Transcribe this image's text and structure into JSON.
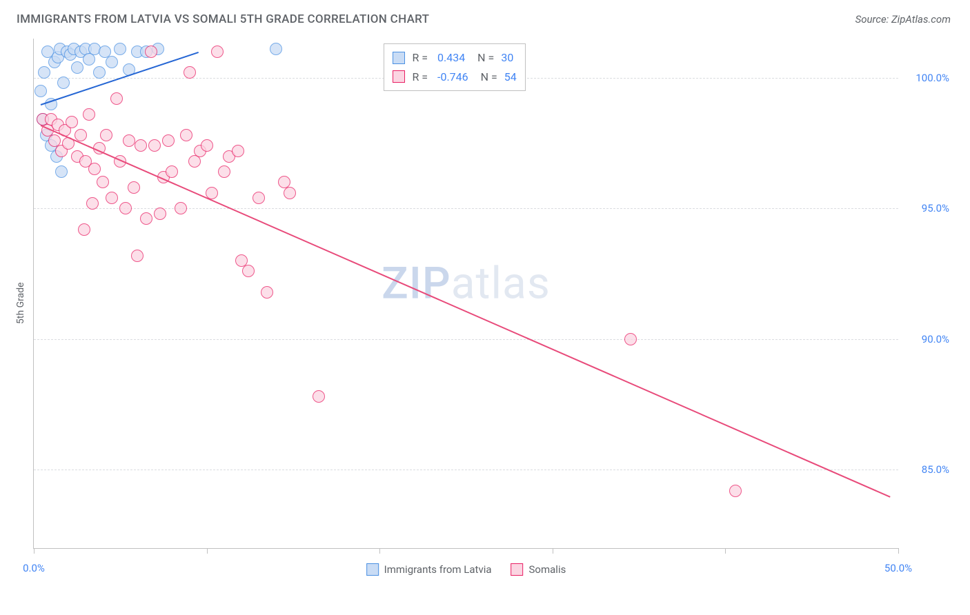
{
  "header": {
    "title": "IMMIGRANTS FROM LATVIA VS SOMALI 5TH GRADE CORRELATION CHART",
    "source": "Source: ZipAtlas.com"
  },
  "chart": {
    "type": "scatter",
    "ylabel": "5th Grade",
    "xlim": [
      0,
      50
    ],
    "ylim": [
      82,
      101.5
    ],
    "xticks": [
      0,
      10,
      20,
      30,
      40,
      50
    ],
    "xtick_labels_shown": {
      "0": "0.0%",
      "50": "50.0%"
    },
    "yticks": [
      85,
      90,
      95,
      100
    ],
    "ytick_labels": [
      "85.0%",
      "90.0%",
      "95.0%",
      "100.0%"
    ],
    "grid_color": "#dadce0",
    "axis_color": "#c0c0c0",
    "background_color": "#ffffff",
    "tick_color": "#4285f4",
    "label_color": "#5f6368",
    "point_radius": 9,
    "point_border_width": 1,
    "series": [
      {
        "name": "Immigrants from Latvia",
        "fill": "#c9dcf5",
        "stroke": "#4a90e2",
        "line_color": "#2566d4",
        "R": 0.434,
        "N": 30,
        "trend": {
          "x1": 0.4,
          "y1": 99.0,
          "x2": 9.5,
          "y2": 101.0
        },
        "points": [
          [
            0.4,
            99.5
          ],
          [
            0.6,
            100.2
          ],
          [
            0.8,
            101.0
          ],
          [
            1.0,
            99.0
          ],
          [
            1.2,
            100.6
          ],
          [
            1.4,
            100.8
          ],
          [
            1.5,
            101.1
          ],
          [
            1.7,
            99.8
          ],
          [
            1.9,
            101.0
          ],
          [
            2.1,
            100.9
          ],
          [
            2.3,
            101.1
          ],
          [
            2.5,
            100.4
          ],
          [
            2.7,
            101.0
          ],
          [
            3.0,
            101.1
          ],
          [
            3.2,
            100.7
          ],
          [
            3.5,
            101.1
          ],
          [
            3.8,
            100.2
          ],
          [
            4.1,
            101.0
          ],
          [
            4.5,
            100.6
          ],
          [
            5.0,
            101.1
          ],
          [
            5.5,
            100.3
          ],
          [
            6.0,
            101.0
          ],
          [
            6.5,
            101.0
          ],
          [
            7.2,
            101.1
          ],
          [
            0.5,
            98.4
          ],
          [
            0.7,
            97.8
          ],
          [
            1.0,
            97.4
          ],
          [
            1.3,
            97.0
          ],
          [
            1.6,
            96.4
          ],
          [
            14.0,
            101.1
          ]
        ]
      },
      {
        "name": "Somalis",
        "fill": "#fbd5e2",
        "stroke": "#e91e63",
        "line_color": "#e84a7a",
        "R": -0.746,
        "N": 54,
        "trend": {
          "x1": 0.4,
          "y1": 98.2,
          "x2": 49.5,
          "y2": 84.0
        },
        "points": [
          [
            0.5,
            98.4
          ],
          [
            0.8,
            98.0
          ],
          [
            1.0,
            98.4
          ],
          [
            1.2,
            97.6
          ],
          [
            1.4,
            98.2
          ],
          [
            1.6,
            97.2
          ],
          [
            1.8,
            98.0
          ],
          [
            2.0,
            97.5
          ],
          [
            2.2,
            98.3
          ],
          [
            2.5,
            97.0
          ],
          [
            2.7,
            97.8
          ],
          [
            3.0,
            96.8
          ],
          [
            3.2,
            98.6
          ],
          [
            3.5,
            96.5
          ],
          [
            3.8,
            97.3
          ],
          [
            4.0,
            96.0
          ],
          [
            4.2,
            97.8
          ],
          [
            4.5,
            95.4
          ],
          [
            4.8,
            99.2
          ],
          [
            5.0,
            96.8
          ],
          [
            5.3,
            95.0
          ],
          [
            5.5,
            97.6
          ],
          [
            5.8,
            95.8
          ],
          [
            6.0,
            93.2
          ],
          [
            6.2,
            97.4
          ],
          [
            6.5,
            94.6
          ],
          [
            6.8,
            101.0
          ],
          [
            7.0,
            97.4
          ],
          [
            7.3,
            94.8
          ],
          [
            7.5,
            96.2
          ],
          [
            7.8,
            97.6
          ],
          [
            8.0,
            96.4
          ],
          [
            8.5,
            95.0
          ],
          [
            8.8,
            97.8
          ],
          [
            9.0,
            100.2
          ],
          [
            9.3,
            96.8
          ],
          [
            9.6,
            97.2
          ],
          [
            10.0,
            97.4
          ],
          [
            10.3,
            95.6
          ],
          [
            10.6,
            101.0
          ],
          [
            11.0,
            96.4
          ],
          [
            11.3,
            97.0
          ],
          [
            11.8,
            97.2
          ],
          [
            12.0,
            93.0
          ],
          [
            12.4,
            92.6
          ],
          [
            13.0,
            95.4
          ],
          [
            13.5,
            91.8
          ],
          [
            14.5,
            96.0
          ],
          [
            14.8,
            95.6
          ],
          [
            16.5,
            87.8
          ],
          [
            34.5,
            90.0
          ],
          [
            40.6,
            84.2
          ],
          [
            2.9,
            94.2
          ],
          [
            3.4,
            95.2
          ]
        ]
      }
    ],
    "stats_legend": {
      "left_pct": 40.5,
      "top_pct": 1.0
    },
    "footer_legend": [
      {
        "label": "Immigrants from Latvia",
        "fill": "#c9dcf5",
        "stroke": "#4a90e2"
      },
      {
        "label": "Somalis",
        "fill": "#fbd5e2",
        "stroke": "#e91e63"
      }
    ],
    "watermark": "ZIPatlas"
  }
}
